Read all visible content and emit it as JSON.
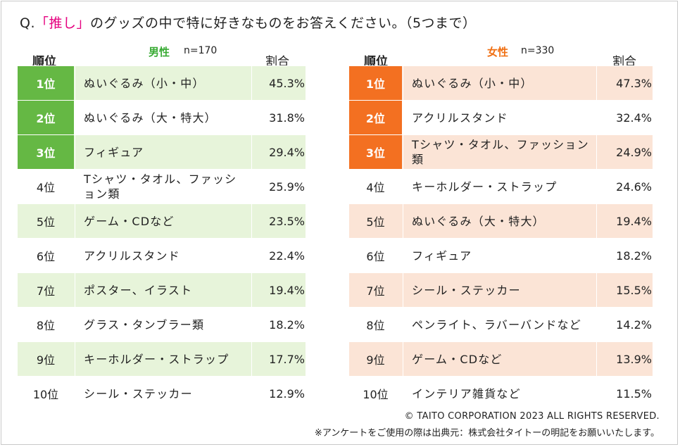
{
  "question": {
    "prefix": "Q.",
    "highlight": "「推し」",
    "rest": "のグッズの中で特に好きなものをお答えください。（5つまで）"
  },
  "male": {
    "rank_header": "順位",
    "gender_label": "男性",
    "n_label": "n=170",
    "ratio_header": "割合",
    "rows": [
      {
        "rank": "1位",
        "item": "ぬいぐるみ（小・中）",
        "pct": "45.3%"
      },
      {
        "rank": "2位",
        "item": "ぬいぐるみ（大・特大）",
        "pct": "31.8%"
      },
      {
        "rank": "3位",
        "item": "フィギュア",
        "pct": "29.4%"
      },
      {
        "rank": "4位",
        "item": "Tシャツ・タオル、ファッション類",
        "pct": "25.9%"
      },
      {
        "rank": "5位",
        "item": "ゲーム・CDなど",
        "pct": "23.5%"
      },
      {
        "rank": "6位",
        "item": "アクリルスタンド",
        "pct": "22.4%"
      },
      {
        "rank": "7位",
        "item": "ポスター、イラスト",
        "pct": "19.4%"
      },
      {
        "rank": "8位",
        "item": "グラス・タンブラー類",
        "pct": "18.2%"
      },
      {
        "rank": "9位",
        "item": "キーホルダー・ストラップ",
        "pct": "17.7%"
      },
      {
        "rank": "10位",
        "item": "シール・ステッカー",
        "pct": "12.9%"
      }
    ]
  },
  "female": {
    "rank_header": "順位",
    "gender_label": "女性",
    "n_label": "n=330",
    "ratio_header": "割合",
    "rows": [
      {
        "rank": "1位",
        "item": "ぬいぐるみ（小・中）",
        "pct": "47.3%"
      },
      {
        "rank": "2位",
        "item": "アクリルスタンド",
        "pct": "32.4%"
      },
      {
        "rank": "3位",
        "item": "Tシャツ・タオル、ファッション類",
        "pct": "24.9%"
      },
      {
        "rank": "4位",
        "item": "キーホルダー・ストラップ",
        "pct": "24.6%"
      },
      {
        "rank": "5位",
        "item": "ぬいぐるみ（大・特大）",
        "pct": "19.4%"
      },
      {
        "rank": "6位",
        "item": "フィギュア",
        "pct": "18.2%"
      },
      {
        "rank": "7位",
        "item": "シール・ステッカー",
        "pct": "15.5%"
      },
      {
        "rank": "8位",
        "item": "ペンライト、ラバーバンドなど",
        "pct": "14.2%"
      },
      {
        "rank": "9位",
        "item": "ゲーム・CDなど",
        "pct": "13.9%"
      },
      {
        "rank": "10位",
        "item": "インテリア雑貨など",
        "pct": "11.5%"
      }
    ]
  },
  "footer": {
    "copyright": "© TAITO CORPORATION 2023 ALL RIGHTS RESERVED.",
    "note": "※アンケートをご使用の際は出典元：株式会社タイトーの明記をお願いいたします。"
  },
  "colors": {
    "male_accent": "#65b844",
    "male_row": "#e7f4da",
    "female_accent": "#f37021",
    "female_row": "#fbe4d6",
    "highlight": "#e5007f"
  }
}
